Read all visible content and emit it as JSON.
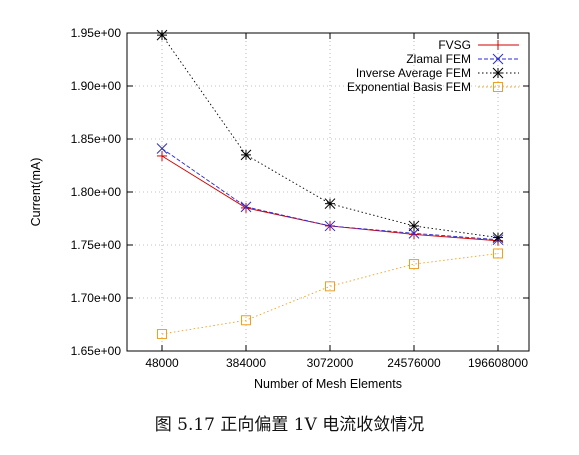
{
  "caption": "图 5.17  正向偏置 1V 电流收敛情况",
  "chart_data": {
    "type": "line",
    "xlabel": "Number of Mesh Elements",
    "ylabel": "Current(mA)",
    "categories": [
      "48000",
      "384000",
      "3072000",
      "24576000",
      "196608000"
    ],
    "ylim": [
      1.65,
      1.95
    ],
    "yticks": [
      1.65,
      1.7,
      1.75,
      1.8,
      1.85,
      1.9,
      1.95
    ],
    "ytick_labels": [
      "1.65e+00",
      "1.70e+00",
      "1.75e+00",
      "1.80e+00",
      "1.85e+00",
      "1.90e+00",
      "1.95e+00"
    ],
    "grid": true,
    "legend_position": "top-right",
    "series": [
      {
        "name": "FVSG",
        "values": [
          1.834,
          1.785,
          1.768,
          1.76,
          1.754
        ],
        "color": "#d10000",
        "marker": "plus",
        "dash": ""
      },
      {
        "name": "Zlamal FEM",
        "values": [
          1.841,
          1.786,
          1.768,
          1.761,
          1.755
        ],
        "color": "#2a2ad8",
        "marker": "x",
        "dash": "4,2"
      },
      {
        "name": "Inverse Average FEM",
        "values": [
          1.948,
          1.835,
          1.789,
          1.768,
          1.757
        ],
        "color": "#000000",
        "marker": "star",
        "dash": "1.5,2.5"
      },
      {
        "name": "Exponential Basis FEM",
        "values": [
          1.666,
          1.679,
          1.711,
          1.732,
          1.742
        ],
        "color": "#f0a020",
        "marker": "square",
        "dash": "1.5,2.5"
      }
    ]
  }
}
